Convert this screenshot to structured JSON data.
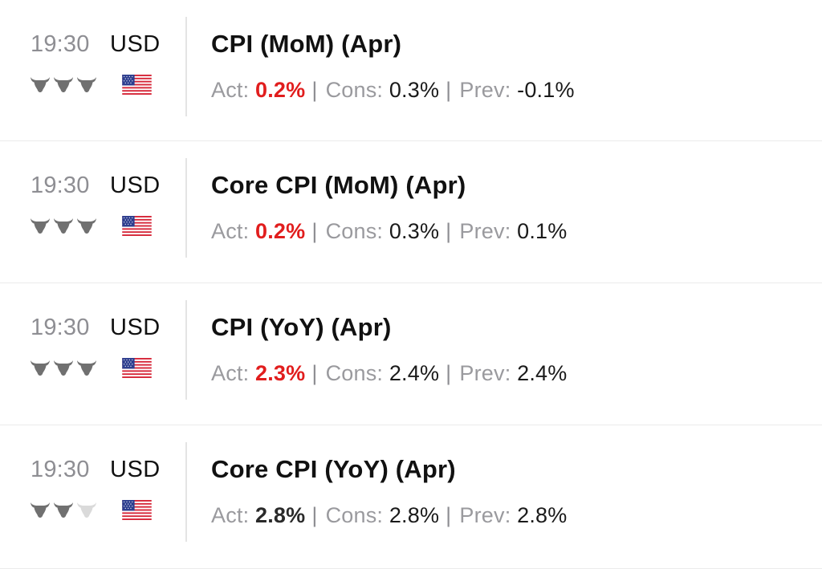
{
  "colors": {
    "bull_active": "#707070",
    "bull_inactive": "#dadada",
    "actual_worse": "#e11d1d",
    "actual_neutral": "#2a2a2a"
  },
  "labels": {
    "act": "Act:",
    "cons": "Cons:",
    "prev": "Prev:",
    "separator": "|"
  },
  "events": [
    {
      "time": "19:30",
      "currency": "USD",
      "title": "CPI (MoM) (Apr)",
      "importance": 3,
      "flag": "us-flag-icon",
      "actual": "0.2%",
      "actual_status": "red",
      "consensus": "0.3%",
      "previous": "-0.1%"
    },
    {
      "time": "19:30",
      "currency": "USD",
      "title": "Core CPI (MoM) (Apr)",
      "importance": 3,
      "flag": "us-flag-icon",
      "actual": "0.2%",
      "actual_status": "red",
      "consensus": "0.3%",
      "previous": "0.1%"
    },
    {
      "time": "19:30",
      "currency": "USD",
      "title": "CPI (YoY) (Apr)",
      "importance": 3,
      "flag": "us-flag-icon",
      "actual": "2.3%",
      "actual_status": "red",
      "consensus": "2.4%",
      "previous": "2.4%"
    },
    {
      "time": "19:30",
      "currency": "USD",
      "title": "Core CPI (YoY) (Apr)",
      "importance": 2,
      "flag": "us-flag-icon",
      "actual": "2.8%",
      "actual_status": "neutral",
      "consensus": "2.8%",
      "previous": "2.8%"
    }
  ]
}
